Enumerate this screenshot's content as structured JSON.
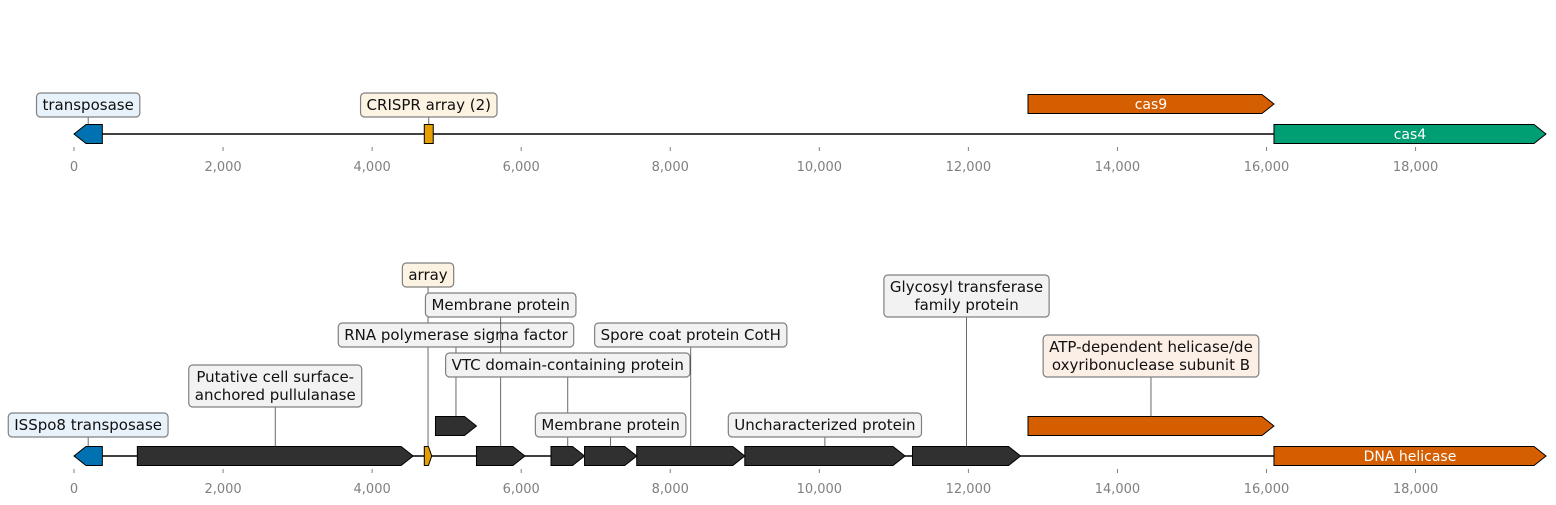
{
  "tracks": [
    {
      "axis": {
        "min": 0,
        "max": 19750,
        "ticks": [
          0,
          2000,
          4000,
          6000,
          8000,
          10000,
          12000,
          14000,
          16000,
          18000
        ],
        "tick_labels": [
          "0",
          "2,000",
          "4,000",
          "6,000",
          "8,000",
          "10,000",
          "12,000",
          "14,000",
          "16,000",
          "18,000"
        ]
      },
      "features": [
        {
          "name": "transposase",
          "start": 0,
          "end": 380,
          "strand": -1,
          "lane": 0,
          "color": "#0072b2",
          "label_box": {
            "text": "transposase",
            "bg": "#e8f2fa",
            "position": "above-callout"
          }
        },
        {
          "name": "CRISPR array (2)",
          "start": 4700,
          "end": 4820,
          "strand": 0,
          "lane": 0,
          "color": "#e69f00",
          "label_box": {
            "text": "CRISPR array (2)",
            "bg": "#fdf3e2",
            "position": "above-callout"
          }
        },
        {
          "name": "cas9",
          "start": 12800,
          "end": 16100,
          "strand": 1,
          "lane": 1,
          "color": "#d55e00",
          "inline_label": "cas9"
        },
        {
          "name": "cas4",
          "start": 16100,
          "end": 19750,
          "strand": 1,
          "lane": 0,
          "color": "#009e73",
          "inline_label": "cas4"
        }
      ]
    },
    {
      "axis": {
        "min": 0,
        "max": 19750,
        "ticks": [
          0,
          2000,
          4000,
          6000,
          8000,
          10000,
          12000,
          14000,
          16000,
          18000
        ],
        "tick_labels": [
          "0",
          "2,000",
          "4,000",
          "6,000",
          "8,000",
          "10,000",
          "12,000",
          "14,000",
          "16,000",
          "18,000"
        ]
      },
      "features": [
        {
          "name": "ISSpo8 transposase",
          "start": 0,
          "end": 380,
          "strand": -1,
          "lane": 0,
          "color": "#0072b2",
          "label_box": {
            "text": "ISSpo8 transposase",
            "bg": "#e8f2fa",
            "level": 0
          }
        },
        {
          "name": "Putative cell surface-anchored pullulanase",
          "start": 850,
          "end": 4550,
          "strand": 1,
          "lane": 0,
          "color": "#303030",
          "label_box": {
            "text": "Putative cell surface-\nanchored pullulanase",
            "bg": "#f2f2f2",
            "level": 1
          }
        },
        {
          "name": "array",
          "start": 4700,
          "end": 4800,
          "strand": 1,
          "lane": 0,
          "color": "#e69f00",
          "label_box": {
            "text": "array",
            "bg": "#fdf3e2",
            "level": 5
          }
        },
        {
          "name": "RNA polymerase sigma factor",
          "start": 4850,
          "end": 5400,
          "strand": 1,
          "lane": 1,
          "color": "#303030",
          "label_box": {
            "text": "RNA polymerase sigma factor",
            "bg": "#f2f2f2",
            "level": 3
          }
        },
        {
          "name": "Membrane protein",
          "start": 5400,
          "end": 6050,
          "strand": 1,
          "lane": 0,
          "color": "#303030",
          "label_box": {
            "text": "Membrane protein",
            "bg": "#f2f2f2",
            "level": 4
          }
        },
        {
          "name": "VTC domain-containing protein",
          "start": 6400,
          "end": 6850,
          "strand": 1,
          "lane": 0,
          "color": "#303030",
          "label_box": {
            "text": "VTC domain-containing protein",
            "bg": "#f2f2f2",
            "level": 2
          }
        },
        {
          "name": "Membrane protein",
          "start": 6850,
          "end": 7550,
          "strand": 1,
          "lane": 0,
          "color": "#303030",
          "label_box": {
            "text": "Membrane protein",
            "bg": "#f2f2f2",
            "level": 0
          }
        },
        {
          "name": "Spore coat protein CotH",
          "start": 7550,
          "end": 9000,
          "strand": 1,
          "lane": 0,
          "color": "#303030",
          "label_box": {
            "text": "Spore coat protein CotH",
            "bg": "#f2f2f2",
            "level": 3
          }
        },
        {
          "name": "Uncharacterized protein",
          "start": 9000,
          "end": 11150,
          "strand": 1,
          "lane": 0,
          "color": "#303030",
          "label_box": {
            "text": "Uncharacterized protein",
            "bg": "#f2f2f2",
            "level": 0
          }
        },
        {
          "name": "Glycosyl transferase family protein",
          "start": 11250,
          "end": 12700,
          "strand": 1,
          "lane": 0,
          "color": "#303030",
          "label_box": {
            "text": "Glycosyl transferase\nfamily protein",
            "bg": "#f2f2f2",
            "level": 4
          }
        },
        {
          "name": "ATP-dependent helicase/deoxyribonuclease subunit B",
          "start": 12800,
          "end": 16100,
          "strand": 1,
          "lane": 1,
          "color": "#d55e00",
          "label_box": {
            "text": "ATP-dependent helicase/de\noxyribonuclease subunit B",
            "bg": "#fcefe6",
            "level": 2
          }
        },
        {
          "name": "DNA helicase",
          "start": 16100,
          "end": 19750,
          "strand": 1,
          "lane": 0,
          "color": "#d55e00",
          "inline_label": "DNA helicase"
        }
      ]
    }
  ]
}
